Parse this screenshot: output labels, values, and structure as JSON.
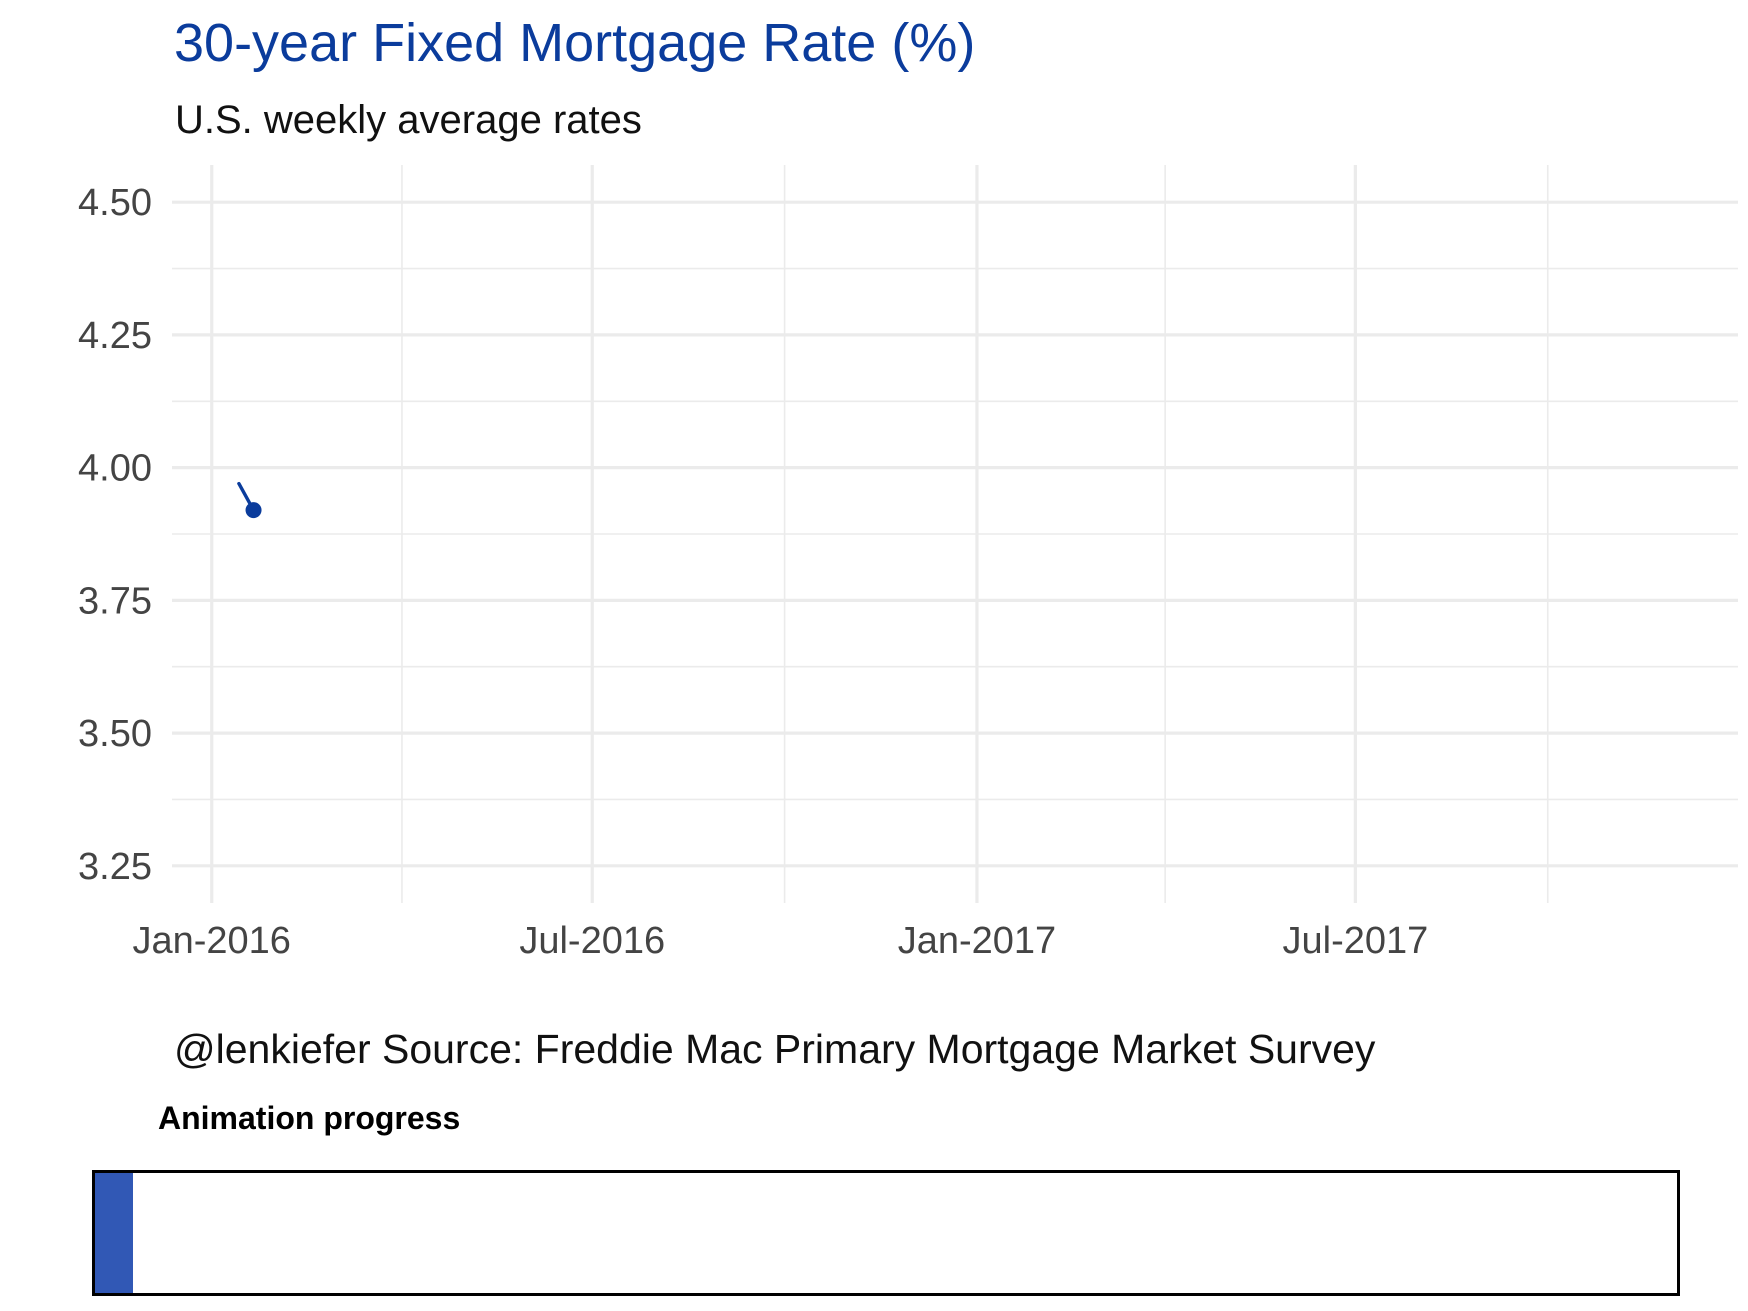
{
  "header": {
    "title": "30-year Fixed Mortgage Rate (%)",
    "subtitle": "U.S. weekly average rates"
  },
  "footer": {
    "caption": "@lenkiefer Source: Freddie Mac Primary Mortgage Market Survey"
  },
  "progress": {
    "label": "Animation progress",
    "value": 0.024,
    "color": "#3158b5"
  },
  "chart_data": {
    "type": "line",
    "title": "30-year Fixed Mortgage Rate (%)",
    "subtitle": "U.S. weekly average rates",
    "xlabel": "",
    "ylabel": "",
    "x": [
      "2016-01-14",
      "2016-01-21"
    ],
    "series": [
      {
        "values": [
          3.97,
          3.92
        ],
        "color": "#0b3c9c"
      }
    ],
    "highlight_point": {
      "x": "2016-01-21",
      "y": 3.92
    },
    "xlim": [
      "2015-12-13",
      "2017-12-31"
    ],
    "ylim": [
      3.18,
      4.57
    ],
    "y_ticks": [
      3.25,
      3.5,
      3.75,
      4.0,
      4.25,
      4.5
    ],
    "y_tick_labels": [
      "3.25",
      "3.50",
      "3.75",
      "4.00",
      "4.25",
      "4.50"
    ],
    "x_ticks": [
      "2016-01-01",
      "2016-07-01",
      "2017-01-01",
      "2017-07-01"
    ],
    "x_tick_labels": [
      "Jan-2016",
      "Jul-2016",
      "Jan-2017",
      "Jul-2017"
    ],
    "x_minor_ticks": [
      "2016-04-01",
      "2016-10-01",
      "2017-04-01",
      "2017-10-01"
    ],
    "grid": true,
    "legend": "none",
    "colors": {
      "line": "#0b3c9c",
      "grid": "#ebebeb",
      "ticks": "#444444"
    }
  }
}
